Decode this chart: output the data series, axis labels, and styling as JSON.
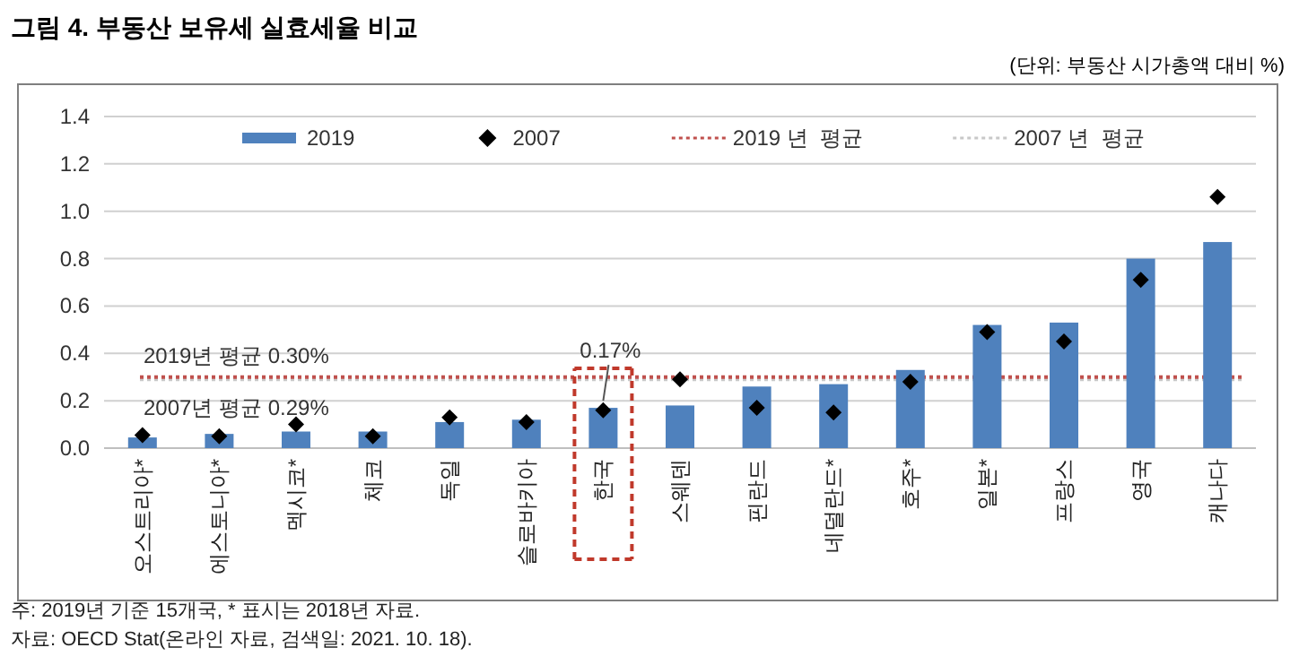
{
  "chart_data": {
    "type": "bar",
    "title": "그림 4. 부동산 보유세 실효세율 비교",
    "subtitle": "(단위: 부동산 시가총액 대비 %)",
    "categories": [
      "오스트리아*",
      "에스토니아*",
      "멕시코*",
      "체코",
      "독일",
      "슬로바키아",
      "한국",
      "스웨덴",
      "핀란드",
      "네덜란드*",
      "호주*",
      "일본*",
      "프랑스",
      "영국",
      "캐나다"
    ],
    "series": [
      {
        "name": "2019",
        "type": "bar",
        "color": "#4f81bd",
        "values": [
          0.045,
          0.06,
          0.07,
          0.07,
          0.11,
          0.12,
          0.17,
          0.18,
          0.26,
          0.27,
          0.33,
          0.52,
          0.53,
          0.8,
          0.87
        ]
      },
      {
        "name": "2007",
        "type": "scatter",
        "marker": "diamond",
        "color": "#000000",
        "values": [
          0.055,
          0.05,
          0.1,
          0.05,
          0.13,
          0.11,
          0.16,
          0.29,
          0.17,
          0.15,
          0.28,
          0.49,
          0.45,
          0.71,
          1.06
        ]
      }
    ],
    "ylim": [
      0,
      1.4
    ],
    "yticks": [
      {
        "value": 0,
        "label": "0.0"
      },
      0.2,
      0.4,
      0.6,
      0.8,
      {
        "value": 1,
        "label": "1.0"
      },
      1.2,
      1.4
    ],
    "grid": "y",
    "legend": "top",
    "ref_lines": [
      {
        "axis": "y",
        "value": 0.3,
        "label": "2019 년  평균",
        "color": "#c0504d",
        "line_style": "dotted"
      },
      {
        "axis": "y",
        "value": 0.29,
        "label": "2007 년  평균",
        "color": "#c8c8c8",
        "line_style": "dotted"
      }
    ],
    "annotations": [
      {
        "text": "2019년 평균 0.30%",
        "y": 0.3
      },
      {
        "text": "2007년 평균 0.29%",
        "y": 0.29
      },
      {
        "text": "0.17%",
        "x": "한국",
        "y": 0.17
      },
      "주: 2019년 기준 15개국, * 표시는 2018년 자료.",
      "자료: OECD Stat(온라인 자료, 검색일: 2021. 10. 18)."
    ]
  }
}
